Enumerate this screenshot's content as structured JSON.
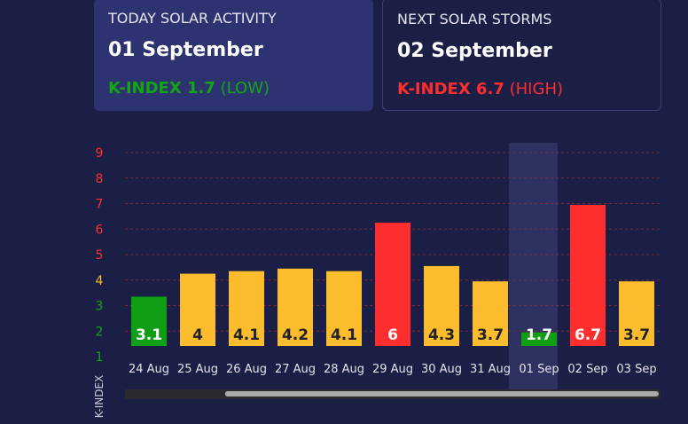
{
  "today": {
    "label": "TODAY SOLAR ACTIVITY",
    "date": "01 September",
    "k_value": "K-INDEX 1.7",
    "k_level": "(LOW)",
    "color": "#12a612"
  },
  "next": {
    "label": "NEXT SOLAR STORMS",
    "date": "02 September",
    "k_value": "K-INDEX 6.7",
    "k_level": "(HIGH)",
    "color": "#ff2e2e"
  },
  "chart_data": {
    "type": "bar",
    "categories": [
      "24 Aug",
      "25 Aug",
      "26 Aug",
      "27 Aug",
      "28 Aug",
      "29 Aug",
      "30 Aug",
      "31 Aug",
      "01 Sep",
      "02 Sep",
      "03 Sep"
    ],
    "values": [
      3.1,
      4,
      4.1,
      4.2,
      4.1,
      6,
      4.3,
      3.7,
      1.7,
      6.7,
      3.7
    ],
    "data_labels": [
      "3.1",
      "4",
      "4.1",
      "4.2",
      "4.1",
      "6",
      "4.3",
      "3.7",
      "1.7",
      "6.7",
      "3.7"
    ],
    "bar_colors": [
      "#0f9e14",
      "#fbbd2e",
      "#fbbd2e",
      "#fbbd2e",
      "#fbbd2e",
      "#ff2e2e",
      "#fbbd2e",
      "#fbbd2e",
      "#0f9e14",
      "#ff2e2e",
      "#fbbd2e"
    ],
    "label_colors": [
      "#ffffff",
      "#222222",
      "#222222",
      "#222222",
      "#222222",
      "#ffffff",
      "#222222",
      "#222222",
      "#ffffff",
      "#ffffff",
      "#222222"
    ],
    "highlight_category": "01 Sep",
    "ylabel": "K-INDEX",
    "ylim": [
      1,
      9
    ],
    "yticks": [
      "1",
      "2",
      "3",
      "4",
      "5",
      "6",
      "7",
      "8",
      "9"
    ],
    "ytick_colors": [
      "#12a612",
      "#12a612",
      "#12a612",
      "#fbbd2e",
      "#ff2e2e",
      "#ff2e2e",
      "#ff2e2e",
      "#ff2e2e",
      "#ff2e2e"
    ],
    "grid": true,
    "grid_color": "#7a2a3a",
    "scrollbar": {
      "visible_fraction": 0.81,
      "position": 0.19
    }
  }
}
